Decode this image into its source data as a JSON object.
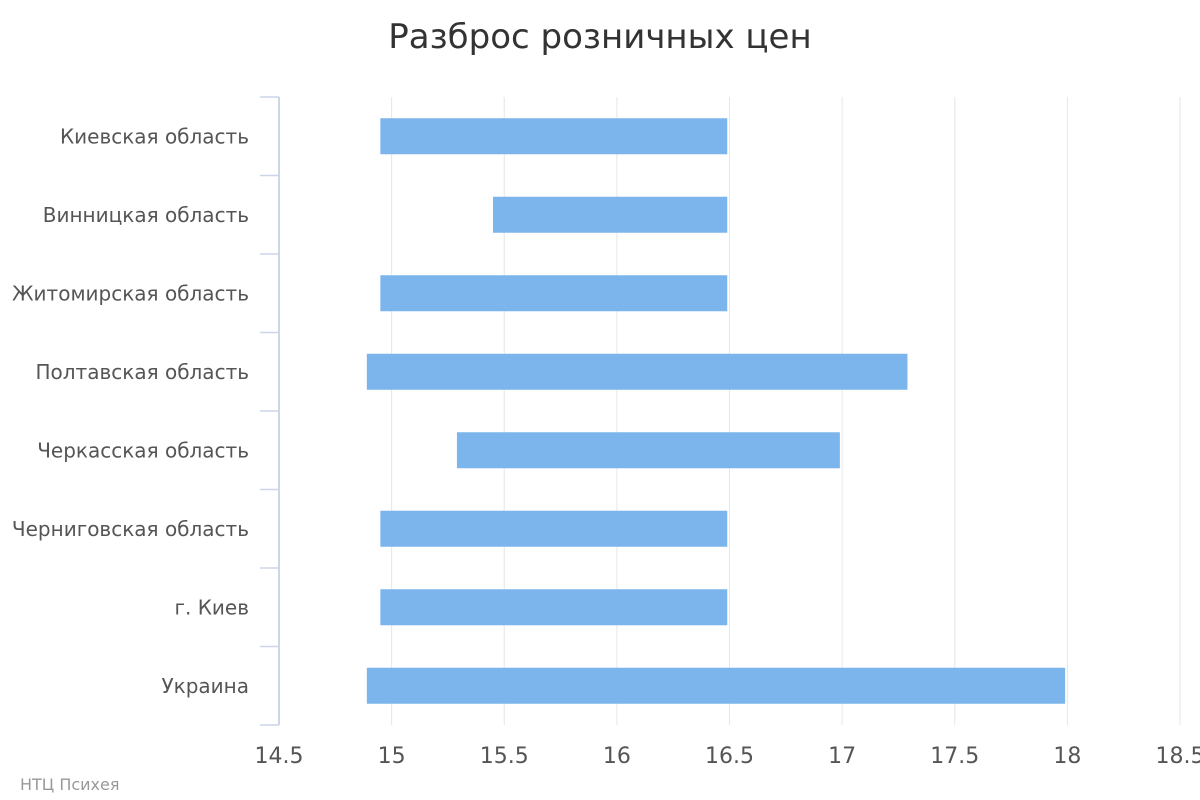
{
  "credit": "НТЦ Психея",
  "colors": {
    "bar": "#7cb5ec",
    "grid": "#e6e6e6",
    "axis": "#ccd6eb",
    "text": "#555555"
  },
  "chart_data": {
    "type": "bar",
    "orientation": "horizontal",
    "title": "Разброс розничных цен",
    "xlabel": "",
    "ylabel": "",
    "xlim": [
      14.5,
      18.5
    ],
    "x_ticks": [
      "14.5",
      "15",
      "15.5",
      "16",
      "16.5",
      "17",
      "17.5",
      "18",
      "18.5"
    ],
    "grid": true,
    "legend": "none",
    "categories": [
      "Киевская область",
      "Винницкая область",
      "Житомирская область",
      "Полтавская область",
      "Черкасская область",
      "Черниговская область",
      "г. Киев",
      "Украина"
    ],
    "series": [
      {
        "low": [
          14.95,
          15.45,
          14.95,
          14.89,
          15.29,
          14.95,
          14.95,
          14.89
        ],
        "high": [
          16.49,
          16.49,
          16.49,
          17.29,
          16.99,
          16.49,
          16.49,
          17.99
        ]
      }
    ]
  }
}
